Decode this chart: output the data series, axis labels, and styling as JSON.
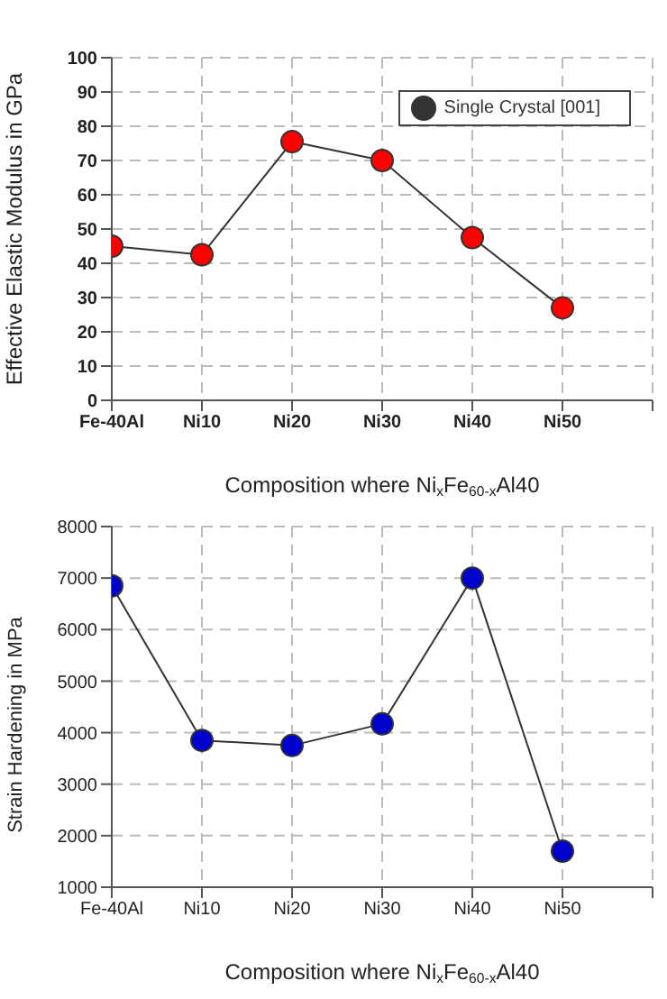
{
  "chart_data": [
    {
      "type": "line",
      "categories": [
        "Fe-40Al",
        "Ni10",
        "Ni20",
        "Ni30",
        "Ni40",
        "Ni50",
        null
      ],
      "xlabel": "Composition where Ni$_{x}$Fe$_{60-x}$Al40",
      "ylabel": "Effective Elastic Modulus in GPa",
      "series": [
        {
          "name": "Single Crystal [001]",
          "color": "#ff0000",
          "values": [
            45,
            42.5,
            75.5,
            70,
            47.5,
            27,
            null
          ]
        }
      ],
      "ylim": [
        0,
        100
      ],
      "yticks": [
        0,
        10,
        20,
        30,
        40,
        50,
        60,
        70,
        80,
        90,
        100
      ],
      "grid": true,
      "legend": "top right",
      "marker": "circle",
      "line_style": "solid"
    },
    {
      "type": "line",
      "categories": [
        "Fe-40Al",
        "Ni10",
        "Ni20",
        "Ni30",
        "Ni40",
        "Ni50",
        null
      ],
      "xlabel": "Composition where Ni$_{x}$Fe$_{60-x}$Al40",
      "ylabel": "Strain Hardening in MPa",
      "series": [
        {
          "color": "#0000cc",
          "values": [
            6850,
            3850,
            3750,
            4170,
            7000,
            1700,
            null
          ]
        }
      ],
      "ylim": [
        1000,
        8000
      ],
      "yticks": [
        1000,
        2000,
        3000,
        4000,
        5000,
        6000,
        7000,
        8000
      ],
      "grid": true,
      "marker": "circle",
      "line_style": "solid"
    }
  ]
}
